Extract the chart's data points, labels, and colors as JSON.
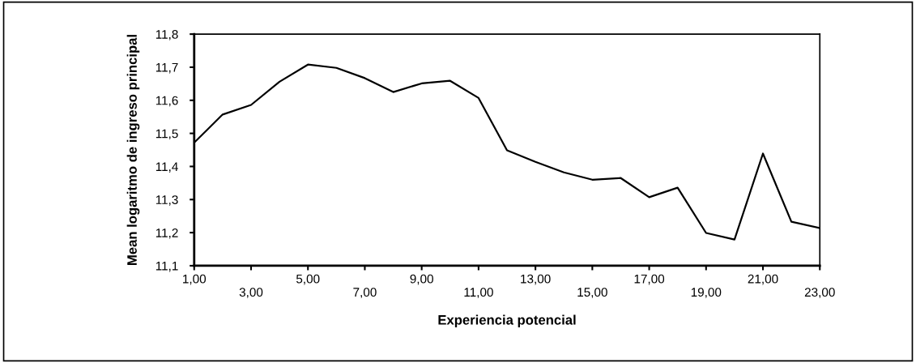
{
  "chart_data": {
    "type": "line",
    "xlabel": "Experiencia potencial",
    "ylabel": "Mean logaritmo de ingreso principal",
    "categories": [
      "1,00",
      null,
      "3,00",
      null,
      "5,00",
      null,
      "7,00",
      null,
      "9,00",
      null,
      "11,00",
      null,
      "13,00",
      null,
      "15,00",
      null,
      "17,00",
      null,
      "19,00",
      null,
      "21,00",
      null,
      "23,00"
    ],
    "series": [
      {
        "color": "#000000",
        "values": [
          11.472,
          11.557,
          11.586,
          11.656,
          11.708,
          11.698,
          11.667,
          11.625,
          11.651,
          11.659,
          11.607,
          11.449,
          11.414,
          11.382,
          11.36,
          11.365,
          11.307,
          11.336,
          11.199,
          11.179,
          11.439,
          11.233,
          11.214
        ]
      }
    ],
    "ylim": [
      11.1,
      11.8
    ],
    "yticks": [
      {
        "value": 11.1,
        "label": "11,1"
      },
      {
        "value": 11.2,
        "label": "11,2"
      },
      {
        "value": 11.3,
        "label": "11,3"
      },
      {
        "value": 11.4,
        "label": "11,4"
      },
      {
        "value": 11.5,
        "label": "11,5"
      },
      {
        "value": 11.6,
        "label": "11,6"
      },
      {
        "value": 11.7,
        "label": "11,7"
      },
      {
        "value": 11.8,
        "label": "11,8"
      }
    ],
    "grid": false,
    "marker": "none",
    "line_style": "solid"
  }
}
